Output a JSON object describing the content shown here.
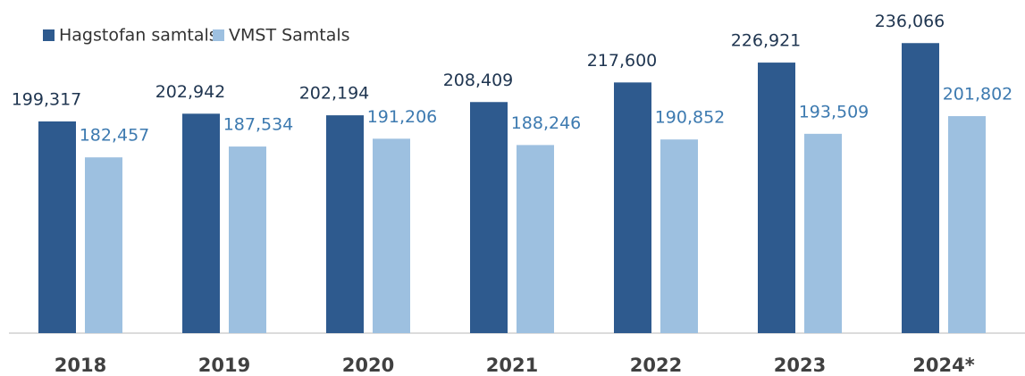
{
  "chart_data": {
    "type": "bar",
    "categories": [
      "2018",
      "2019",
      "2020",
      "2021",
      "2022",
      "2023",
      "2024*"
    ],
    "series": [
      {
        "name": "Hagstofan samtals",
        "color": "#2e5a8e",
        "values": [
          199317,
          202942,
          202194,
          208409,
          217600,
          226921,
          236066
        ],
        "value_labels": [
          "199,317",
          "202,942",
          "202,194",
          "208,409",
          "217,600",
          "226,921",
          "236,066"
        ]
      },
      {
        "name": "VMST Samtals",
        "color": "#9dc0e0",
        "values": [
          182457,
          187534,
          191206,
          188246,
          190852,
          193509,
          201802
        ],
        "value_labels": [
          "182,457",
          "187,534",
          "191,206",
          "188,246",
          "190,852",
          "193,509",
          "201,802"
        ]
      }
    ],
    "ylim": [
      100000,
      250000
    ],
    "legend": "top-left"
  }
}
